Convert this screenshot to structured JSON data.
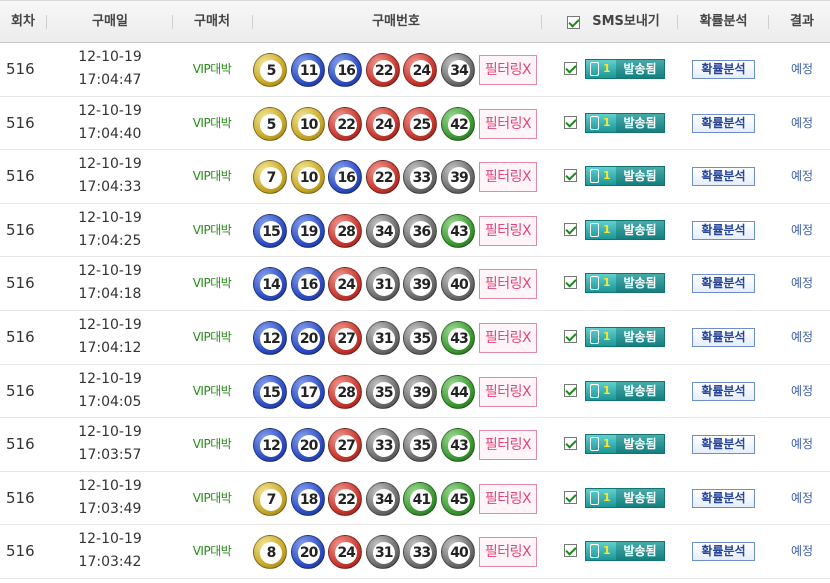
{
  "header": {
    "round": "회차",
    "date": "구매일",
    "store": "구매처",
    "numbers": "구매번호",
    "sms": "SMS보내기",
    "analysis": "확률분석",
    "result": "결과"
  },
  "colors": {
    "yellow": "#c9a928",
    "blue": "#2f4fc4",
    "red": "#c93a30",
    "gray": "#6f6f6f",
    "green": "#3d9b33",
    "store_text": "#2a8a1a",
    "filter_text": "#e0457a",
    "sms_bg": "#1b9696",
    "result_text": "#3b5fa8"
  },
  "rows": [
    {
      "round": "516",
      "date": "12-10-19",
      "time": "17:04:47",
      "store": "VIP대박",
      "numbers": [
        "5",
        "11",
        "16",
        "22",
        "24",
        "34"
      ],
      "ball_colors": [
        "yellow",
        "blue",
        "blue",
        "red",
        "red",
        "gray"
      ],
      "filter": "필터링X",
      "sms_count": "1",
      "sms_label": "발송됨",
      "analysis": "확률분석",
      "result": "예정"
    },
    {
      "round": "516",
      "date": "12-10-19",
      "time": "17:04:40",
      "store": "VIP대박",
      "numbers": [
        "5",
        "10",
        "22",
        "24",
        "25",
        "42"
      ],
      "ball_colors": [
        "yellow",
        "yellow",
        "red",
        "red",
        "red",
        "green"
      ],
      "filter": "필터링X",
      "sms_count": "1",
      "sms_label": "발송됨",
      "analysis": "확률분석",
      "result": "예정"
    },
    {
      "round": "516",
      "date": "12-10-19",
      "time": "17:04:33",
      "store": "VIP대박",
      "numbers": [
        "7",
        "10",
        "16",
        "22",
        "33",
        "39"
      ],
      "ball_colors": [
        "yellow",
        "yellow",
        "blue",
        "red",
        "gray",
        "gray"
      ],
      "filter": "필터링X",
      "sms_count": "1",
      "sms_label": "발송됨",
      "analysis": "확률분석",
      "result": "예정"
    },
    {
      "round": "516",
      "date": "12-10-19",
      "time": "17:04:25",
      "store": "VIP대박",
      "numbers": [
        "15",
        "19",
        "28",
        "34",
        "36",
        "43"
      ],
      "ball_colors": [
        "blue",
        "blue",
        "red",
        "gray",
        "gray",
        "green"
      ],
      "filter": "필터링X",
      "sms_count": "1",
      "sms_label": "발송됨",
      "analysis": "확률분석",
      "result": "예정"
    },
    {
      "round": "516",
      "date": "12-10-19",
      "time": "17:04:18",
      "store": "VIP대박",
      "numbers": [
        "14",
        "16",
        "24",
        "31",
        "39",
        "40"
      ],
      "ball_colors": [
        "blue",
        "blue",
        "red",
        "gray",
        "gray",
        "gray"
      ],
      "filter": "필터링X",
      "sms_count": "1",
      "sms_label": "발송됨",
      "analysis": "확률분석",
      "result": "예정"
    },
    {
      "round": "516",
      "date": "12-10-19",
      "time": "17:04:12",
      "store": "VIP대박",
      "numbers": [
        "12",
        "20",
        "27",
        "31",
        "35",
        "43"
      ],
      "ball_colors": [
        "blue",
        "blue",
        "red",
        "gray",
        "gray",
        "green"
      ],
      "filter": "필터링X",
      "sms_count": "1",
      "sms_label": "발송됨",
      "analysis": "확률분석",
      "result": "예정"
    },
    {
      "round": "516",
      "date": "12-10-19",
      "time": "17:04:05",
      "store": "VIP대박",
      "numbers": [
        "15",
        "17",
        "28",
        "35",
        "39",
        "44"
      ],
      "ball_colors": [
        "blue",
        "blue",
        "red",
        "gray",
        "gray",
        "green"
      ],
      "filter": "필터링X",
      "sms_count": "1",
      "sms_label": "발송됨",
      "analysis": "확률분석",
      "result": "예정"
    },
    {
      "round": "516",
      "date": "12-10-19",
      "time": "17:03:57",
      "store": "VIP대박",
      "numbers": [
        "12",
        "20",
        "27",
        "33",
        "35",
        "43"
      ],
      "ball_colors": [
        "blue",
        "blue",
        "red",
        "gray",
        "gray",
        "green"
      ],
      "filter": "필터링X",
      "sms_count": "1",
      "sms_label": "발송됨",
      "analysis": "확률분석",
      "result": "예정"
    },
    {
      "round": "516",
      "date": "12-10-19",
      "time": "17:03:49",
      "store": "VIP대박",
      "numbers": [
        "7",
        "18",
        "22",
        "34",
        "41",
        "45"
      ],
      "ball_colors": [
        "yellow",
        "blue",
        "red",
        "gray",
        "green",
        "green"
      ],
      "filter": "필터링X",
      "sms_count": "1",
      "sms_label": "발송됨",
      "analysis": "확률분석",
      "result": "예정"
    },
    {
      "round": "516",
      "date": "12-10-19",
      "time": "17:03:42",
      "store": "VIP대박",
      "numbers": [
        "8",
        "20",
        "24",
        "31",
        "33",
        "40"
      ],
      "ball_colors": [
        "yellow",
        "blue",
        "red",
        "gray",
        "gray",
        "gray"
      ],
      "filter": "필터링X",
      "sms_count": "1",
      "sms_label": "발송됨",
      "analysis": "확률분석",
      "result": "예정"
    }
  ]
}
